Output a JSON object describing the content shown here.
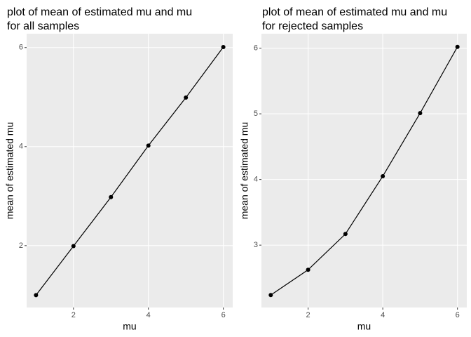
{
  "chart_data": [
    {
      "type": "line",
      "title": [
        "plot of mean of estimated mu and mu",
        "for all samples"
      ],
      "x_label": "mu",
      "y_label": "mean of estimated mu",
      "x": [
        1,
        2,
        3,
        4,
        5,
        6
      ],
      "values": [
        1.0,
        1.99,
        2.98,
        4.02,
        4.99,
        6.01
      ],
      "color": "#000000",
      "xlim": [
        0.75,
        6.25
      ],
      "xticks": [
        2,
        4,
        6
      ],
      "ylim": [
        0.75,
        6.28
      ],
      "yticks": [
        2,
        4,
        6
      ],
      "grid": true
    },
    {
      "type": "line",
      "title": [
        "plot of mean of estimated mu and mu",
        "for rejected samples"
      ],
      "x_label": "mu",
      "y_label": "mean of estimated mu",
      "x": [
        1,
        2,
        3,
        4,
        5,
        6
      ],
      "values": [
        2.24,
        2.625,
        3.17,
        4.05,
        5.01,
        6.02
      ],
      "color": "#000000",
      "xlim": [
        0.75,
        6.25
      ],
      "xticks": [
        2,
        4,
        6
      ],
      "ylim": [
        2.05,
        6.22
      ],
      "yticks": [
        3,
        4,
        5,
        6
      ],
      "grid": true
    }
  ]
}
